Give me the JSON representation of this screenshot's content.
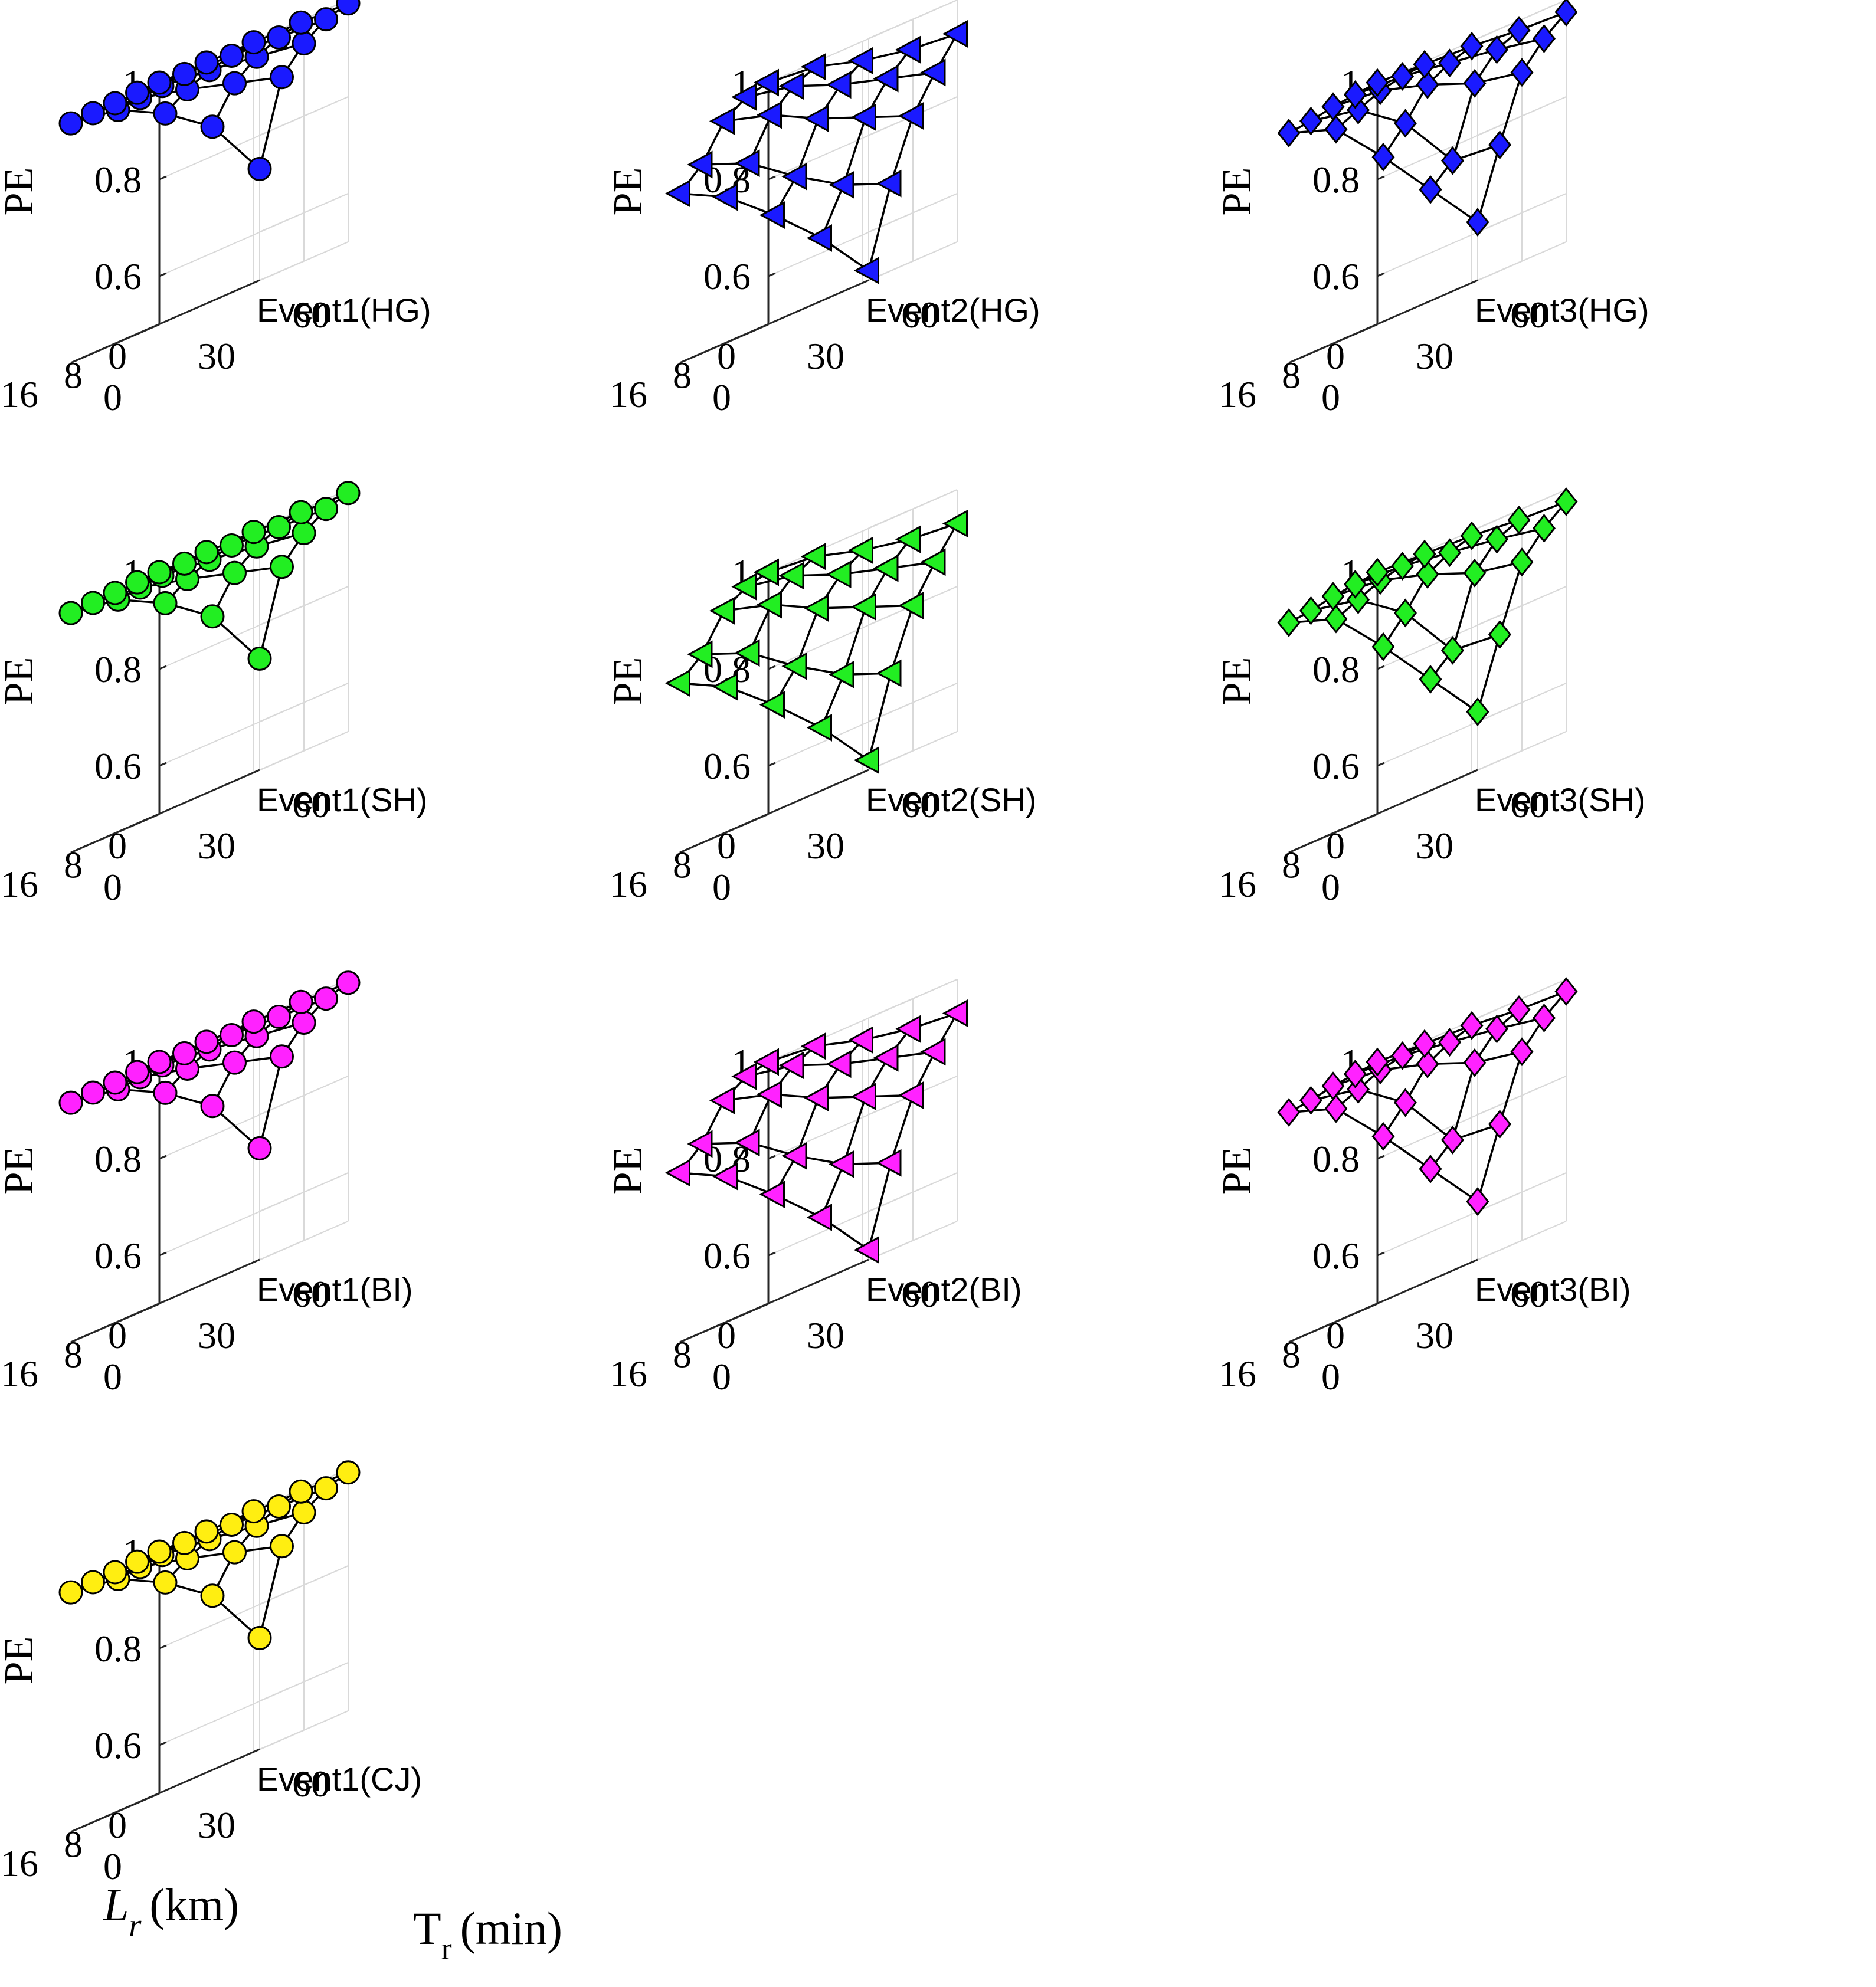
{
  "figure": {
    "ylabel": "PE",
    "xlabel_lr": "L",
    "xlabel_lr_sub": "r",
    "xlabel_lr_unit": "(km)",
    "xlabel_tr": "T",
    "xlabel_tr_sub": "r",
    "xlabel_tr_unit": "(min)"
  },
  "colors": {
    "HG": "#1a1aff",
    "SH": "#22ee22",
    "BI": "#ff22ff",
    "CJ": "#ffee11",
    "line": "#000000",
    "grid": "#d9d9d9",
    "axis": "#262626"
  },
  "chart_data": [
    {
      "type": "scatter3d",
      "title": "Event1(HG)",
      "group": "HG",
      "marker": "circle",
      "zlabel": "PE",
      "zticks": [
        "0.6",
        "0.8",
        "1"
      ],
      "zlim": [
        0.5,
        1.0
      ],
      "lr_ticks": [
        "0",
        "8",
        "16"
      ],
      "tr_ticks": [
        "0",
        "30",
        "60"
      ],
      "Lr": [
        0,
        4,
        8,
        12,
        16
      ],
      "Tr": [
        0,
        15,
        30,
        45,
        60
      ],
      "PE": [
        [
          1.0,
          0.999,
          0.998,
          0.996,
          0.993
        ],
        [
          0.999,
          0.995,
          0.99,
          0.985,
          0.98
        ],
        [
          0.997,
          0.99,
          0.98,
          0.965,
          0.95
        ],
        [
          0.996,
          0.985,
          0.96,
          0.93,
          0.9
        ],
        [
          0.995,
          0.98,
          0.93,
          0.86,
          0.73
        ]
      ]
    },
    {
      "type": "scatter3d",
      "title": "Event2(HG)",
      "group": "HG",
      "marker": "triangle",
      "zlabel": "PE",
      "zticks": [
        "0.6",
        "0.8",
        "1"
      ],
      "zlim": [
        0.5,
        1.0
      ],
      "lr_ticks": [
        "0",
        "8",
        "16"
      ],
      "tr_ticks": [
        "0",
        "30",
        "60"
      ],
      "Lr": [
        0,
        4,
        8,
        12,
        16
      ],
      "Tr": [
        0,
        15,
        30,
        45,
        60
      ],
      "PE": [
        [
          1.0,
          0.99,
          0.96,
          0.94,
          0.93
        ],
        [
          0.99,
          0.97,
          0.93,
          0.9,
          0.87
        ],
        [
          0.96,
          0.93,
          0.88,
          0.84,
          0.8
        ],
        [
          0.89,
          0.85,
          0.78,
          0.72,
          0.68
        ],
        [
          0.85,
          0.8,
          0.72,
          0.63,
          0.52
        ]
      ]
    },
    {
      "type": "scatter3d",
      "title": "Event3(HG)",
      "group": "HG",
      "marker": "diamond",
      "zlabel": "PE",
      "zticks": [
        "0.6",
        "0.8",
        "1"
      ],
      "zlim": [
        0.5,
        1.0
      ],
      "lr_ticks": [
        "0",
        "8",
        "16"
      ],
      "tr_ticks": [
        "0",
        "30",
        "60"
      ],
      "Lr": [
        0,
        4,
        8,
        12,
        16
      ],
      "Tr": [
        0,
        15,
        30,
        45,
        60
      ],
      "PE": [
        [
          1.0,
          0.995,
          0.99,
          0.98,
          0.975
        ],
        [
          0.995,
          0.99,
          0.975,
          0.96,
          0.94
        ],
        [
          0.99,
          0.98,
          0.95,
          0.91,
          0.89
        ],
        [
          0.98,
          0.96,
          0.89,
          0.77,
          0.76
        ],
        [
          0.975,
          0.94,
          0.84,
          0.73,
          0.62
        ]
      ]
    },
    {
      "type": "scatter3d",
      "title": "Event1(SH)",
      "group": "SH",
      "marker": "circle",
      "zlabel": "PE",
      "zticks": [
        "0.6",
        "0.8",
        "1"
      ],
      "zlim": [
        0.5,
        1.0
      ],
      "lr_ticks": [
        "0",
        "8",
        "16"
      ],
      "tr_ticks": [
        "0",
        "30",
        "60"
      ],
      "Lr": [
        0,
        4,
        8,
        12,
        16
      ],
      "Tr": [
        0,
        15,
        30,
        45,
        60
      ],
      "PE": [
        [
          1.0,
          0.999,
          0.998,
          0.996,
          0.993
        ],
        [
          0.999,
          0.995,
          0.99,
          0.985,
          0.98
        ],
        [
          0.997,
          0.99,
          0.98,
          0.965,
          0.95
        ],
        [
          0.996,
          0.985,
          0.96,
          0.93,
          0.9
        ],
        [
          0.995,
          0.98,
          0.93,
          0.86,
          0.73
        ]
      ]
    },
    {
      "type": "scatter3d",
      "title": "Event2(SH)",
      "group": "SH",
      "marker": "triangle",
      "zlabel": "PE",
      "zticks": [
        "0.6",
        "0.8",
        "1"
      ],
      "zlim": [
        0.5,
        1.0
      ],
      "lr_ticks": [
        "0",
        "8",
        "16"
      ],
      "tr_ticks": [
        "0",
        "30",
        "60"
      ],
      "Lr": [
        0,
        4,
        8,
        12,
        16
      ],
      "Tr": [
        0,
        15,
        30,
        45,
        60
      ],
      "PE": [
        [
          1.0,
          0.99,
          0.96,
          0.94,
          0.93
        ],
        [
          0.99,
          0.97,
          0.93,
          0.9,
          0.87
        ],
        [
          0.96,
          0.93,
          0.88,
          0.84,
          0.8
        ],
        [
          0.89,
          0.85,
          0.78,
          0.72,
          0.68
        ],
        [
          0.85,
          0.8,
          0.72,
          0.63,
          0.52
        ]
      ]
    },
    {
      "type": "scatter3d",
      "title": "Event3(SH)",
      "group": "SH",
      "marker": "diamond",
      "zlabel": "PE",
      "zticks": [
        "0.6",
        "0.8",
        "1"
      ],
      "zlim": [
        0.5,
        1.0
      ],
      "lr_ticks": [
        "0",
        "8",
        "16"
      ],
      "tr_ticks": [
        "0",
        "30",
        "60"
      ],
      "Lr": [
        0,
        4,
        8,
        12,
        16
      ],
      "Tr": [
        0,
        15,
        30,
        45,
        60
      ],
      "PE": [
        [
          1.0,
          0.995,
          0.99,
          0.98,
          0.975
        ],
        [
          0.995,
          0.99,
          0.975,
          0.96,
          0.94
        ],
        [
          0.99,
          0.98,
          0.95,
          0.91,
          0.89
        ],
        [
          0.98,
          0.96,
          0.89,
          0.77,
          0.76
        ],
        [
          0.975,
          0.94,
          0.84,
          0.73,
          0.62
        ]
      ]
    },
    {
      "type": "scatter3d",
      "title": "Event1(BI)",
      "group": "BI",
      "marker": "circle",
      "zlabel": "PE",
      "zticks": [
        "0.6",
        "0.8",
        "1"
      ],
      "zlim": [
        0.5,
        1.0
      ],
      "lr_ticks": [
        "0",
        "8",
        "16"
      ],
      "tr_ticks": [
        "0",
        "30",
        "60"
      ],
      "Lr": [
        0,
        4,
        8,
        12,
        16
      ],
      "Tr": [
        0,
        15,
        30,
        45,
        60
      ],
      "PE": [
        [
          1.0,
          0.999,
          0.998,
          0.996,
          0.993
        ],
        [
          0.999,
          0.995,
          0.99,
          0.985,
          0.98
        ],
        [
          0.997,
          0.99,
          0.98,
          0.965,
          0.95
        ],
        [
          0.996,
          0.985,
          0.96,
          0.93,
          0.9
        ],
        [
          0.995,
          0.98,
          0.93,
          0.86,
          0.73
        ]
      ]
    },
    {
      "type": "scatter3d",
      "title": "Event2(BI)",
      "group": "BI",
      "marker": "triangle",
      "zlabel": "PE",
      "zticks": [
        "0.6",
        "0.8",
        "1"
      ],
      "zlim": [
        0.5,
        1.0
      ],
      "lr_ticks": [
        "0",
        "8",
        "16"
      ],
      "tr_ticks": [
        "0",
        "30",
        "60"
      ],
      "Lr": [
        0,
        4,
        8,
        12,
        16
      ],
      "Tr": [
        0,
        15,
        30,
        45,
        60
      ],
      "PE": [
        [
          1.0,
          0.99,
          0.96,
          0.94,
          0.93
        ],
        [
          0.99,
          0.97,
          0.93,
          0.9,
          0.87
        ],
        [
          0.96,
          0.93,
          0.88,
          0.84,
          0.8
        ],
        [
          0.89,
          0.85,
          0.78,
          0.72,
          0.68
        ],
        [
          0.85,
          0.8,
          0.72,
          0.63,
          0.52
        ]
      ]
    },
    {
      "type": "scatter3d",
      "title": "Event3(BI)",
      "group": "BI",
      "marker": "diamond",
      "zlabel": "PE",
      "zticks": [
        "0.6",
        "0.8",
        "1"
      ],
      "zlim": [
        0.5,
        1.0
      ],
      "lr_ticks": [
        "0",
        "8",
        "16"
      ],
      "tr_ticks": [
        "0",
        "30",
        "60"
      ],
      "Lr": [
        0,
        4,
        8,
        12,
        16
      ],
      "Tr": [
        0,
        15,
        30,
        45,
        60
      ],
      "PE": [
        [
          1.0,
          0.995,
          0.99,
          0.98,
          0.975
        ],
        [
          0.995,
          0.99,
          0.975,
          0.96,
          0.94
        ],
        [
          0.99,
          0.98,
          0.95,
          0.91,
          0.89
        ],
        [
          0.98,
          0.96,
          0.89,
          0.77,
          0.76
        ],
        [
          0.975,
          0.94,
          0.84,
          0.73,
          0.62
        ]
      ]
    },
    {
      "type": "scatter3d",
      "title": "Event1(CJ)",
      "group": "CJ",
      "marker": "circle",
      "zlabel": "PE",
      "zticks": [
        "0.6",
        "0.8",
        "1"
      ],
      "zlim": [
        0.5,
        1.0
      ],
      "lr_ticks": [
        "0",
        "8",
        "16"
      ],
      "tr_ticks": [
        "0",
        "30",
        "60"
      ],
      "Lr": [
        0,
        4,
        8,
        12,
        16
      ],
      "Tr": [
        0,
        15,
        30,
        45,
        60
      ],
      "PE": [
        [
          1.0,
          0.999,
          0.998,
          0.996,
          0.993
        ],
        [
          0.999,
          0.995,
          0.99,
          0.985,
          0.98
        ],
        [
          0.997,
          0.99,
          0.98,
          0.965,
          0.95
        ],
        [
          0.996,
          0.985,
          0.96,
          0.93,
          0.9
        ],
        [
          0.995,
          0.98,
          0.93,
          0.86,
          0.73
        ]
      ]
    }
  ]
}
